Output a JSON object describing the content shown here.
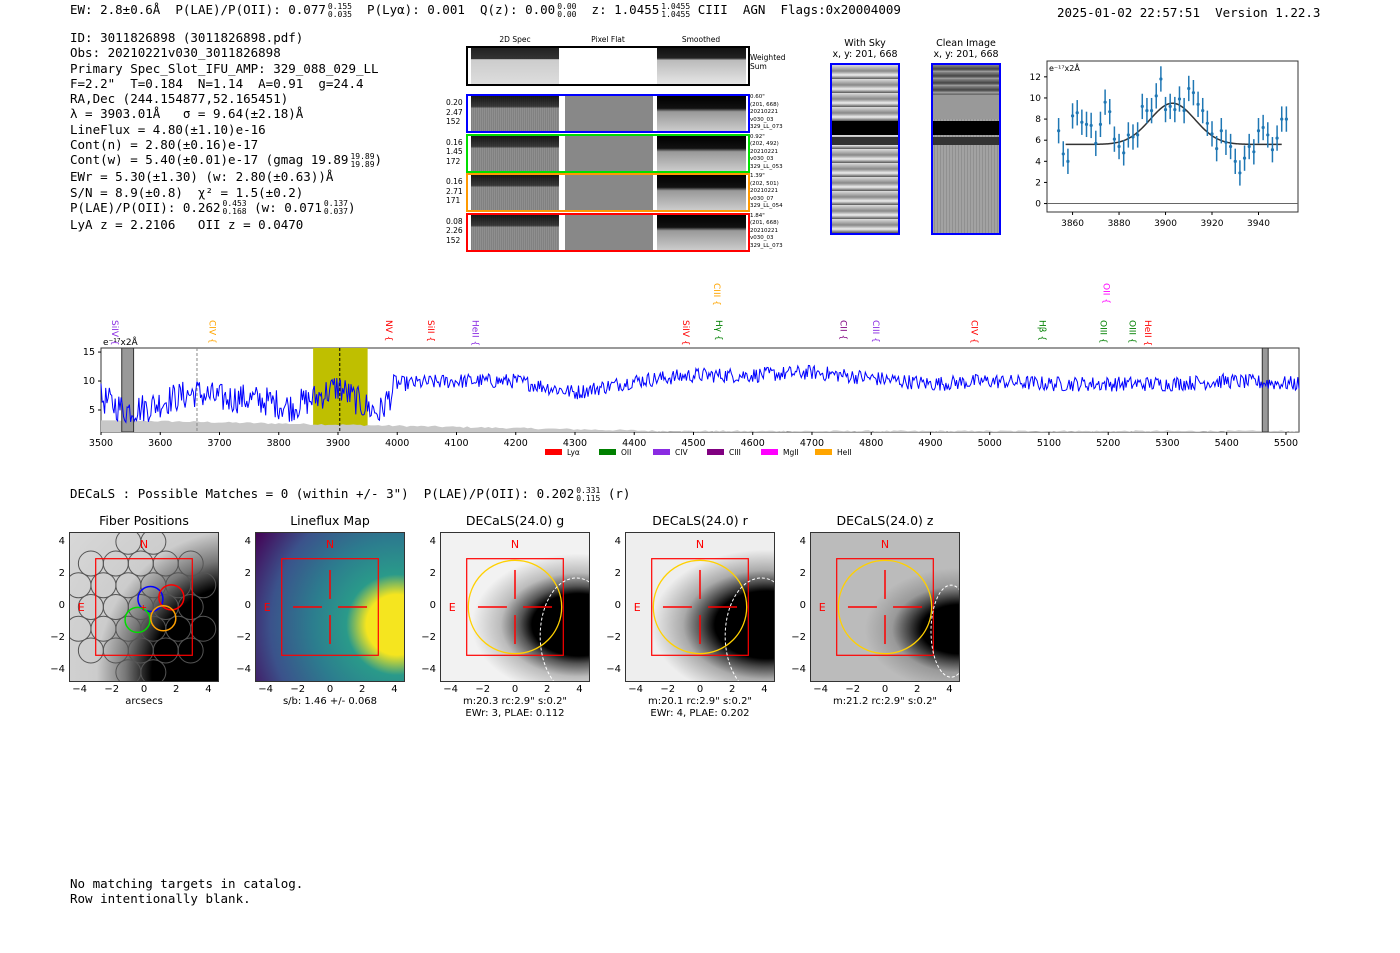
{
  "header": {
    "ew": "EW: 2.8±0.6Å",
    "plae_label": "P(LAE)/P(OII): 0.077",
    "plae_hi": "0.155",
    "plae_lo": "0.035",
    "plya": "P(Lyα): 0.001",
    "qz_label": "Q(z): 0.00",
    "qz_hi": "0.00",
    "qz_lo": "0.00",
    "z_label": "z: 1.0455",
    "z_hi": "1.0455",
    "z_lo": "1.0455",
    "line_agn_flags": "CIII  AGN  Flags:0x20004009",
    "datetime": "2025-01-02 22:57:51",
    "version": "Version 1.22.3"
  },
  "info": {
    "lines": [
      "ID: 3011826898 (3011826898.pdf)",
      "Obs: 20210221v030_3011826898",
      "Primary Spec_Slot_IFU_AMP: 329_088_029_LL",
      "F=2.2\"  T=0.184  N=1.14  A=0.91  g=24.4",
      "RA,Dec (244.154877,52.165451)",
      "λ = 3903.01Å   σ = 9.64(±2.18)Å",
      "LineFlux = 4.80(±1.10)e-16",
      "Cont(n) = 2.80(±0.16)e-17"
    ],
    "contw": "Cont(w) = 5.40(±0.01)e-17 (gmag 19.89",
    "contw_hi": "19.89",
    "contw_lo": "19.89",
    "contw_end": ")",
    "ewr": "EWr = 5.30(±1.30) (w: 2.80(±0.63))Å",
    "sn": "S/N = 8.9(±0.8)  χ² = 1.5(±0.2)",
    "plae": "P(LAE)/P(OII): 0.262",
    "plae_hi": "0.453",
    "plae_lo": "0.168",
    "plae_w": "(w: 0.071",
    "plae_w_hi": "0.137",
    "plae_w_lo": "0.037",
    "plae_w_end": ")",
    "z": "LyA z = 2.2106   OII z = 0.0470"
  },
  "spec2d": {
    "columns": [
      "2D Spec",
      "Pixel Flat",
      "Smoothed"
    ],
    "weighted_label": "Weighted\nSum",
    "rows": [
      {
        "color": "#0000ff",
        "left": [
          "0.20",
          "2.47",
          "152"
        ],
        "right": [
          "0.60\"",
          "(201, 668)",
          "20210221",
          "v030_03",
          "329_LL_073"
        ]
      },
      {
        "color": "#00dd00",
        "left": [
          "0.16",
          "1.45",
          "172"
        ],
        "right": [
          "0.92\"",
          "(202, 492)",
          "20210221",
          "v030_03",
          "329_LL_053"
        ]
      },
      {
        "color": "#ff9900",
        "left": [
          "0.16",
          "2.71",
          "171"
        ],
        "right": [
          "1.39\"",
          "(202, 501)",
          "20210221",
          "v030_07",
          "329_LL_054"
        ]
      },
      {
        "color": "#ff0000",
        "left": [
          "0.08",
          "2.26",
          "152"
        ],
        "right": [
          "1.84\"",
          "(201, 668)",
          "20210221",
          "v030_03",
          "329_LL_073"
        ]
      }
    ]
  },
  "sky": {
    "with_sky_title": "With Sky",
    "with_sky_xy": "x, y: 201, 668",
    "clean_title": "Clean Image",
    "clean_xy": "x, y: 201, 668"
  },
  "chart_data": [
    {
      "type": "scatter",
      "title": "",
      "ylabel": "e⁻¹⁷x2Å",
      "xlim": [
        3849,
        3957
      ],
      "ylim": [
        -0.8,
        13.5
      ],
      "xticks": [
        3860,
        3880,
        3900,
        3920,
        3940
      ],
      "yticks": [
        0,
        2,
        4,
        6,
        8,
        10,
        12
      ],
      "x": [
        3854,
        3856,
        3858,
        3860,
        3862,
        3864,
        3866,
        3868,
        3870,
        3872,
        3874,
        3876,
        3878,
        3880,
        3882,
        3884,
        3886,
        3888,
        3890,
        3892,
        3894,
        3896,
        3898,
        3900,
        3902,
        3904,
        3906,
        3908,
        3910,
        3912,
        3914,
        3916,
        3918,
        3920,
        3922,
        3924,
        3926,
        3928,
        3930,
        3932,
        3934,
        3936,
        3938,
        3940,
        3942,
        3944,
        3946,
        3948,
        3950,
        3952
      ],
      "y": [
        6.9,
        4.7,
        4.0,
        8.3,
        8.6,
        7.7,
        7.5,
        7.4,
        5.7,
        7.5,
        9.6,
        8.7,
        6.1,
        5.4,
        4.8,
        6.5,
        6.3,
        6.5,
        9.2,
        8.8,
        8.8,
        10.2,
        11.8,
        8.9,
        9.2,
        8.9,
        9.9,
        8.8,
        10.9,
        10.5,
        9.4,
        8.8,
        7.6,
        6.6,
        5.2,
        6.9,
        5.8,
        5.4,
        4.0,
        2.9,
        4.3,
        5.4,
        4.9,
        6.9,
        7.2,
        6.5,
        5.1,
        6.2,
        8.0,
        8.0
      ],
      "yerr": 1.2,
      "fit": {
        "center": 3903.01,
        "sigma": 9.64,
        "continuum": 5.6,
        "peak": 9.5,
        "xrange": [
          3857,
          3950
        ]
      },
      "colors": {
        "points": "#1f77b4",
        "fit": "#333333"
      }
    },
    {
      "type": "line",
      "ylabel": "e⁻¹⁷x2Å",
      "xlim": [
        3500,
        5522
      ],
      "ylim": [
        1.2,
        15.7
      ],
      "xticks": [
        3500,
        3600,
        3700,
        3800,
        3900,
        4000,
        4100,
        4200,
        4300,
        4400,
        4500,
        4600,
        4700,
        4800,
        4900,
        5000,
        5100,
        5200,
        5300,
        5400,
        5500
      ],
      "yticks": [
        5,
        10,
        15
      ],
      "baseline_x": [
        3500,
        3540,
        3580,
        3620,
        3660,
        3700,
        3740,
        3780,
        3820,
        3860,
        3900,
        3940,
        3970,
        4000,
        4100,
        4200,
        4300,
        4400,
        4500,
        4600,
        4700,
        4800,
        4900,
        5000,
        5100,
        5200,
        5300,
        5400,
        5522
      ],
      "baseline_y": [
        7,
        5,
        5.5,
        7,
        8,
        7,
        7,
        6.5,
        5.5,
        7,
        9,
        6,
        4.5,
        9.5,
        10,
        10,
        8,
        10,
        11,
        11,
        11.5,
        10.5,
        9.5,
        10,
        9.5,
        9.5,
        9.5,
        10,
        9.5
      ],
      "noise_amp": 1.3,
      "highlight_band": [
        3858,
        3950
      ],
      "masked_bands": [
        [
          3535,
          3555
        ],
        [
          5460,
          5470
        ]
      ],
      "vlines": [
        {
          "x": 3662,
          "color": "#888888"
        },
        {
          "x": 3903,
          "color": "#000000"
        }
      ],
      "line_labels": [
        {
          "name": "SiIV",
          "x": 3524,
          "color": "#8a2be2",
          "row": 1
        },
        {
          "name": "CIV",
          "x": 3688,
          "color": "#ffa500",
          "row": 1
        },
        {
          "name": "NV",
          "x": 3986,
          "color": "#ff0000",
          "row": 1
        },
        {
          "name": "SiII",
          "x": 4057,
          "color": "#ff0000",
          "row": 1
        },
        {
          "name": "HeII",
          "x": 4132,
          "color": "#8a2be2",
          "row": 1
        },
        {
          "name": "SiIV",
          "x": 4487,
          "color": "#ff0000",
          "row": 1
        },
        {
          "name": "CIII",
          "x": 4540,
          "color": "#ffa500",
          "row": 0
        },
        {
          "name": "Hγ",
          "x": 4543,
          "color": "#008000",
          "row": 1
        },
        {
          "name": "CII",
          "x": 4753,
          "color": "#800080",
          "row": 1
        },
        {
          "name": "CIII",
          "x": 4808,
          "color": "#8a2be2",
          "row": 1
        },
        {
          "name": "CIV",
          "x": 4974,
          "color": "#ff0000",
          "row": 1
        },
        {
          "name": "Hβ",
          "x": 5089,
          "color": "#008000",
          "row": 1
        },
        {
          "name": "OII",
          "x": 5197,
          "color": "#ff00ff",
          "row": 0
        },
        {
          "name": "OIII",
          "x": 5192,
          "color": "#008000",
          "row": 1
        },
        {
          "name": "OIII",
          "x": 5241,
          "color": "#008000",
          "row": 1
        },
        {
          "name": "HeII",
          "x": 5267,
          "color": "#ff0000",
          "row": 1
        }
      ],
      "legend": [
        {
          "label": "Lyα",
          "color": "#ff0000"
        },
        {
          "label": "OII",
          "color": "#008000"
        },
        {
          "label": "CIV",
          "color": "#8a2be2"
        },
        {
          "label": "CIII",
          "color": "#800080"
        },
        {
          "label": "MgII",
          "color": "#ff00ff"
        },
        {
          "label": "HeII",
          "color": "#ffa500"
        }
      ]
    }
  ],
  "decals": {
    "summary": "DECaLS : Possible Matches = 0 (within +/- 3\")  P(LAE)/P(OII): 0.202",
    "summary_hi": "0.331",
    "summary_lo": "0.115",
    "summary_end": "(r)",
    "panels": [
      {
        "title": "Fiber Positions",
        "caption1": "arcsecs",
        "caption2": ""
      },
      {
        "title": "Lineflux Map",
        "caption1": "s/b: 1.46 +/- 0.068",
        "caption2": ""
      },
      {
        "title": "DECaLS(24.0) g",
        "caption1": "m:20.3 rc:2.9\"  s:0.2\"",
        "caption2": "EWr: 3, PLAE: 0.112"
      },
      {
        "title": "DECaLS(24.0) r",
        "caption1": "m:20.1 rc:2.9\"  s:0.2\"",
        "caption2": "EWr: 4, PLAE: 0.202"
      },
      {
        "title": "DECaLS(24.0) z",
        "caption1": "m:21.2 rc:2.9\"  s:0.2\"",
        "caption2": ""
      }
    ],
    "ticks": [
      "−4",
      "−2",
      "0",
      "2",
      "4"
    ],
    "north": "N",
    "east": "E"
  },
  "footer": {
    "line1": "No matching targets in catalog.",
    "line2": "Row intentionally blank."
  }
}
